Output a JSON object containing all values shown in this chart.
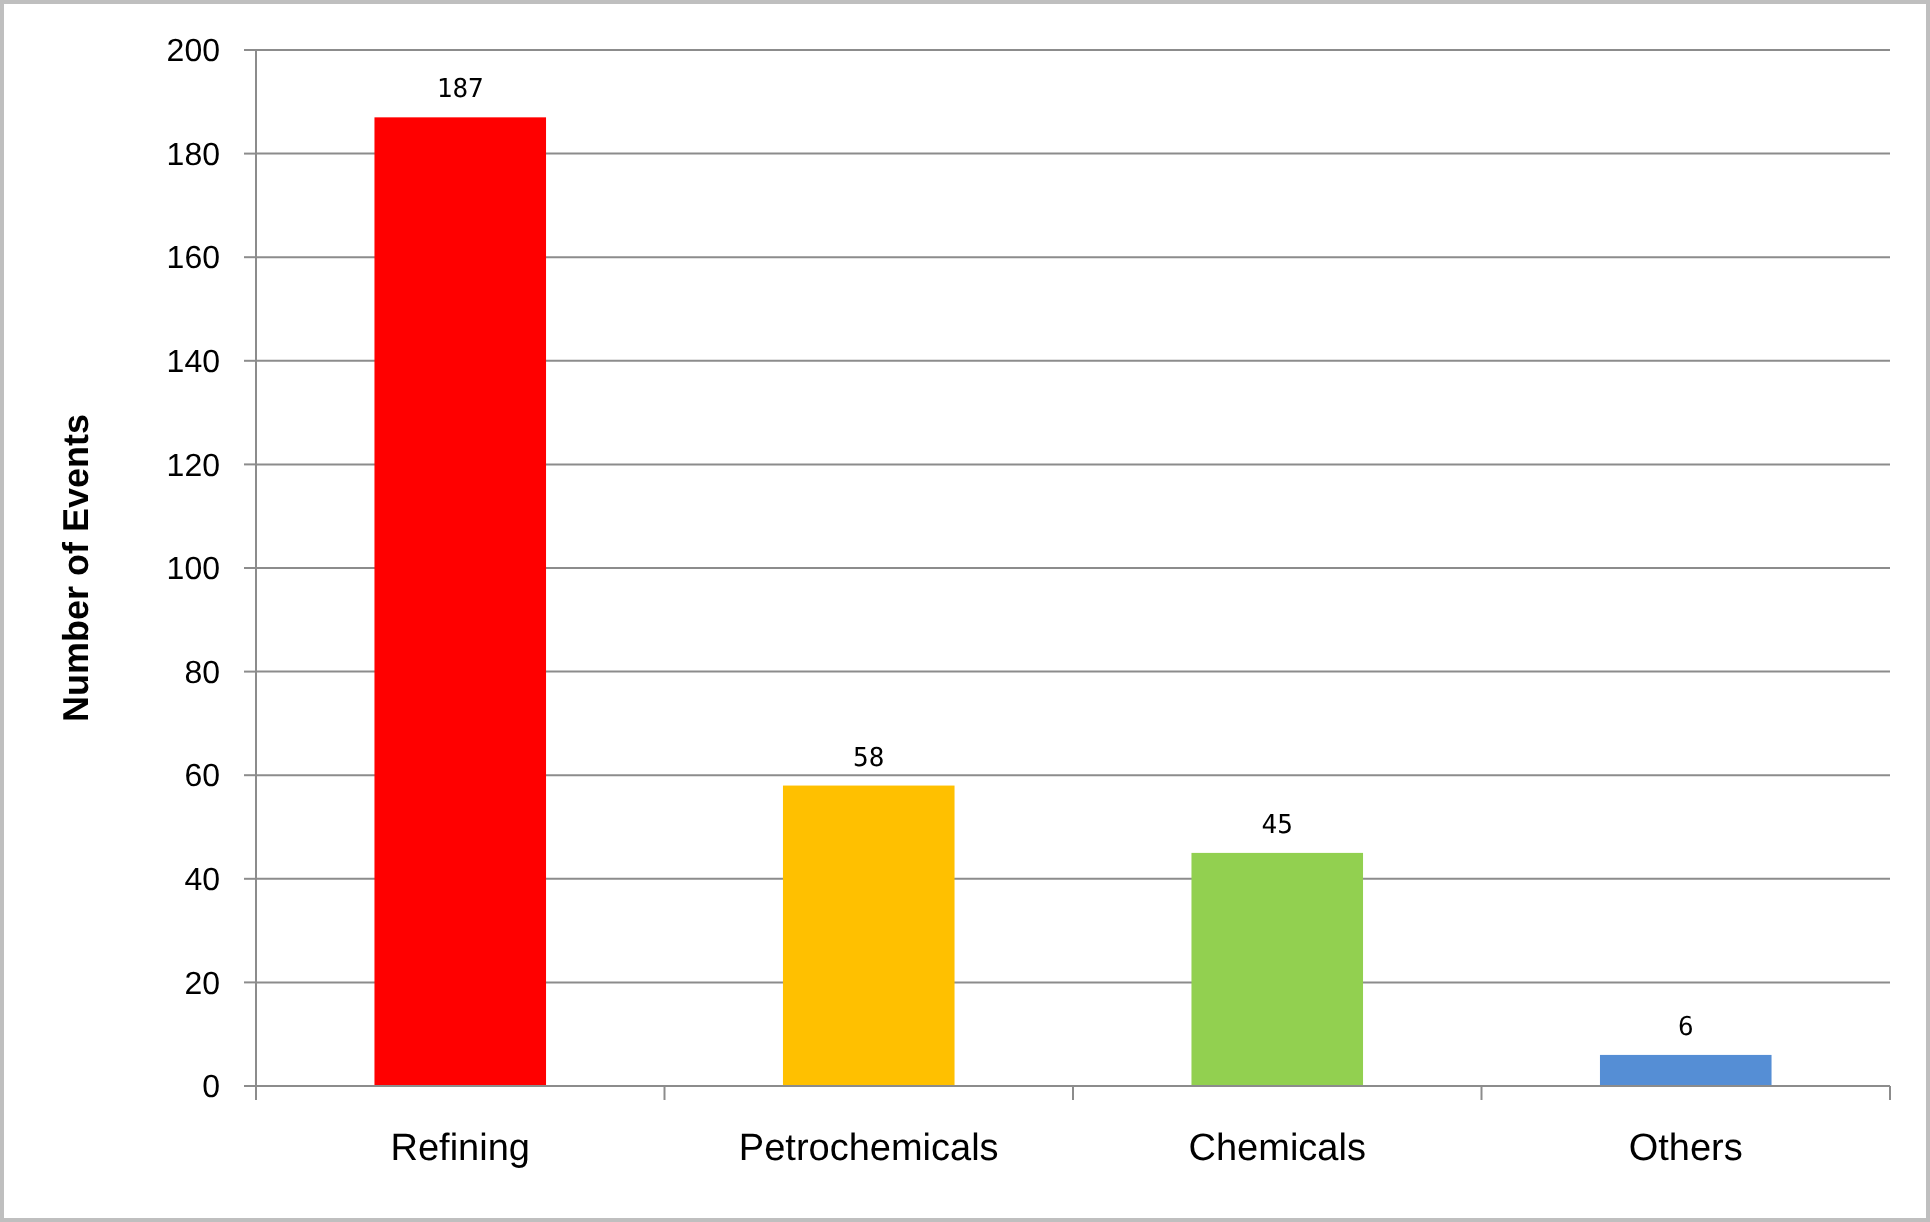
{
  "chart_data": {
    "type": "bar",
    "ylabel": "Number of Events",
    "categories": [
      "Refining",
      "Petrochemicals",
      "Chemicals",
      "Others"
    ],
    "values": [
      187,
      58,
      45,
      6
    ],
    "colors": [
      "#ff0000",
      "#ffc000",
      "#92d050",
      "#558ed5"
    ],
    "ylim": [
      0,
      200
    ],
    "yticks": [
      0,
      20,
      40,
      60,
      80,
      100,
      120,
      140,
      160,
      180,
      200
    ],
    "grid": "y",
    "data_labels": true
  }
}
